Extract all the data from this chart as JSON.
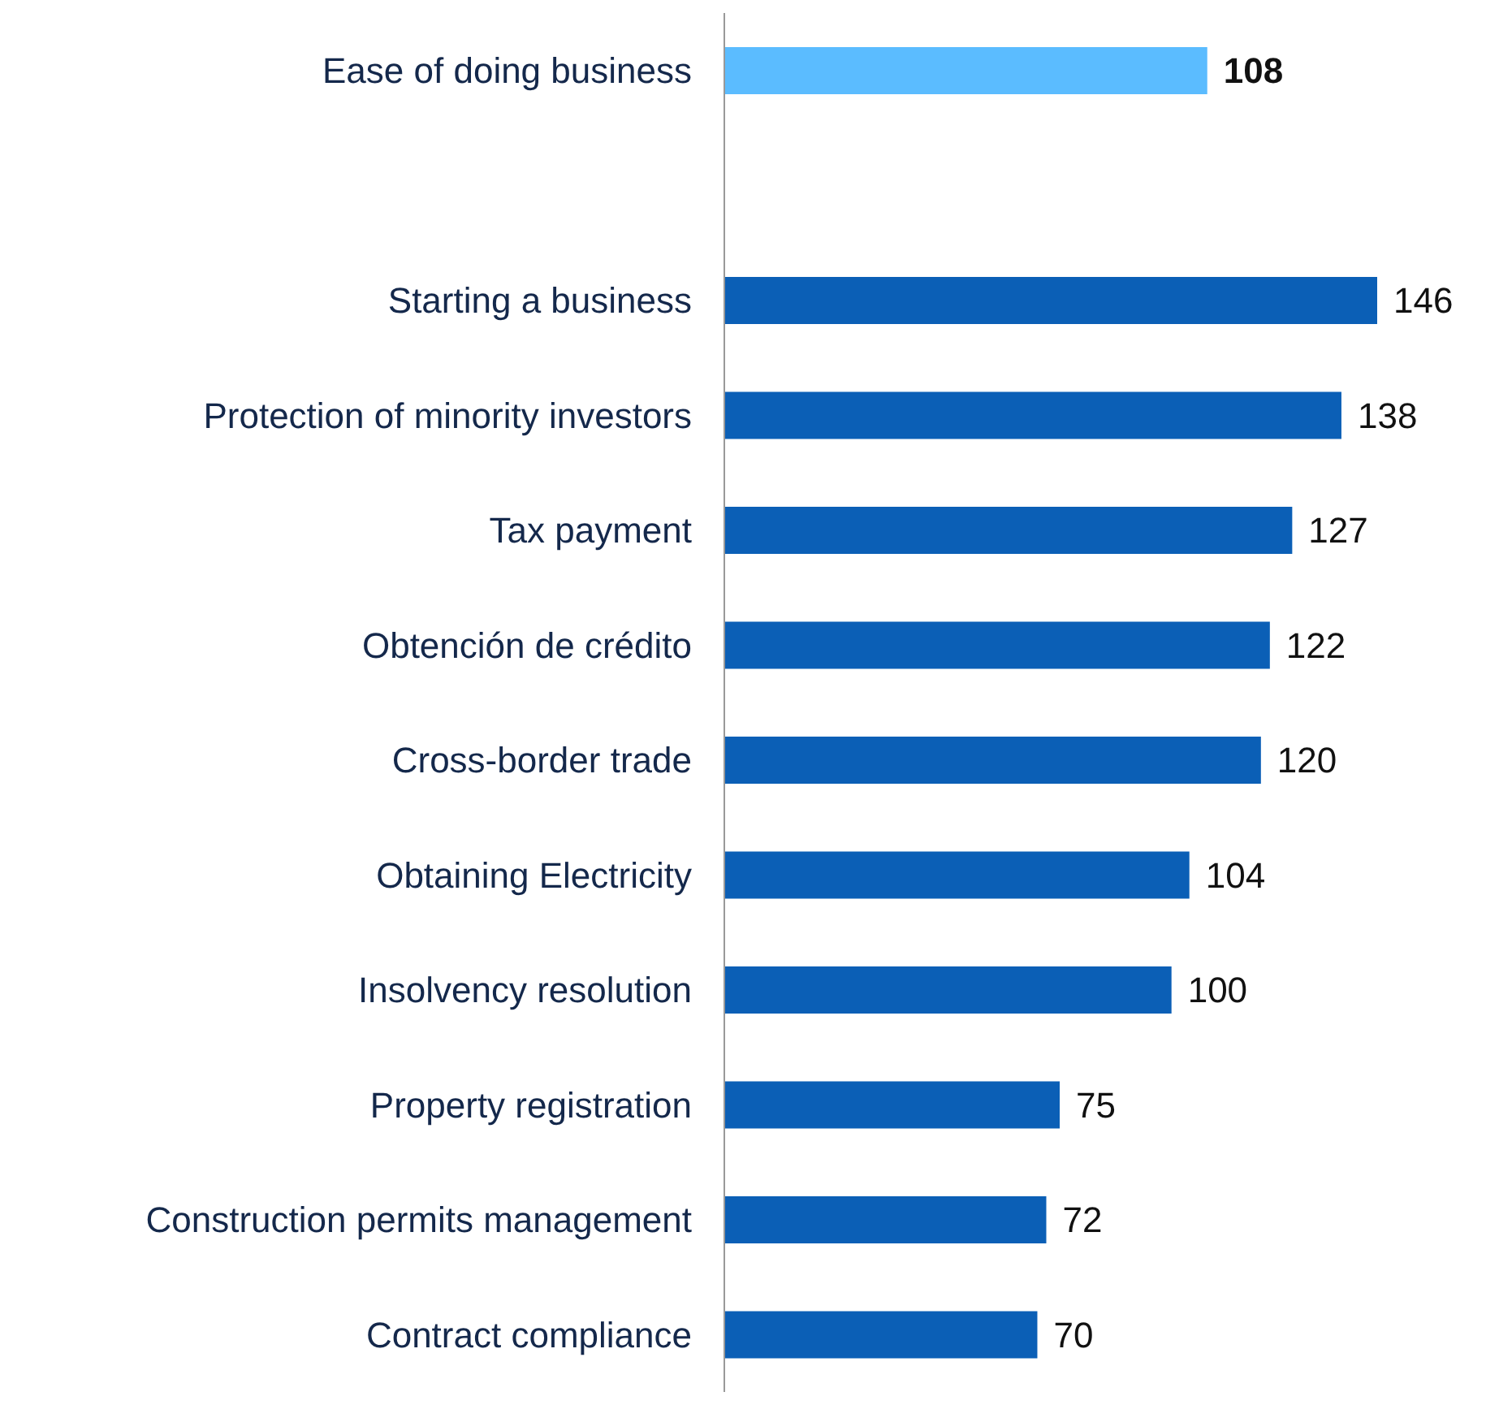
{
  "chart_data": {
    "type": "bar",
    "orientation": "horizontal",
    "data_labels": true,
    "categories": [
      "Ease of doing business",
      null,
      "Starting a business",
      "Protection of minority investors",
      "Tax payment",
      "Obtención de crédito",
      "Cross-border trade",
      "Obtaining Electricity",
      "Insolvency resolution",
      "Property registration",
      "Construction permits management",
      "Contract compliance"
    ],
    "values": [
      108,
      null,
      146,
      138,
      127,
      122,
      120,
      104,
      100,
      75,
      72,
      70
    ],
    "colors": [
      "#5bbcff",
      "#0b5fb6",
      "#0b5fb6",
      "#0b5fb6",
      "#0b5fb6",
      "#0b5fb6",
      "#0b5fb6",
      "#0b5fb6",
      "#0b5fb6",
      "#0b5fb6",
      "#0b5fb6",
      "#0b5fb6"
    ]
  }
}
